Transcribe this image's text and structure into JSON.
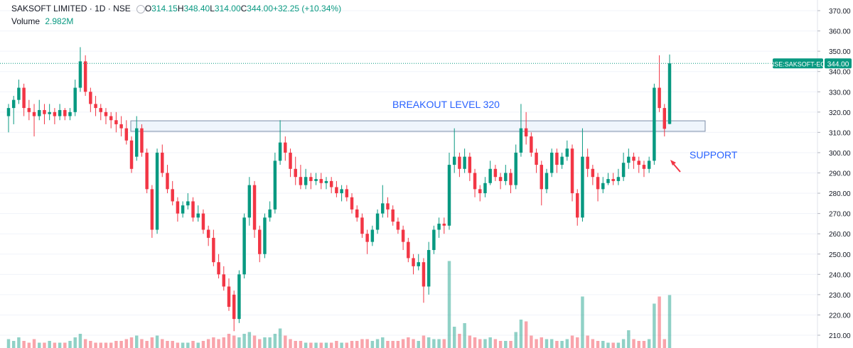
{
  "chart_data": {
    "type": "candlestick",
    "title": "SAKSOFT LIMITED · 1D · NSE",
    "legend": [
      {
        "prefix": "O",
        "text": "314.15"
      },
      {
        "prefix": "H",
        "text": "348.40"
      },
      {
        "prefix": "L",
        "text": "314.00"
      },
      {
        "prefix": "C",
        "text": "344.00"
      }
    ],
    "change": "+32.25 (+10.34%)",
    "volume_label": "Volume",
    "volume_value": "2.982M",
    "symbol_tag": "NSE:SAKSOFT-EQ",
    "last_price": {
      "value": 344,
      "label": "344.00"
    },
    "up_color": "#089981",
    "down_color": "#f23645",
    "ylim": [
      210,
      370
    ],
    "yticks": [
      {
        "value": 210,
        "label": "210.00"
      },
      {
        "value": 220,
        "label": "220.00"
      },
      {
        "value": 230,
        "label": "230.00"
      },
      {
        "value": 240,
        "label": "240.00"
      },
      {
        "value": 250,
        "label": "250.00"
      },
      {
        "value": 260,
        "label": "260.00"
      },
      {
        "value": 270,
        "label": "270.00"
      },
      {
        "value": 280,
        "label": "280.00"
      },
      {
        "value": 290,
        "label": "290.00"
      },
      {
        "value": 300,
        "label": "300.00"
      },
      {
        "value": 310,
        "label": "310.00"
      },
      {
        "value": 320,
        "label": "320.00"
      },
      {
        "value": 330,
        "label": "330.00"
      },
      {
        "value": 340,
        "label": "340.00"
      },
      {
        "value": 350,
        "label": "350.00"
      },
      {
        "value": 360,
        "label": "360.00"
      },
      {
        "value": 370,
        "label": "370.00"
      }
    ],
    "grid": true,
    "zone": [
      310.5,
      315.7
    ],
    "annotations": [
      {
        "text": "BREAKOUT LEVEL 320",
        "color": "#2962ff"
      },
      {
        "text": "SUPPORT",
        "color": "#2962ff"
      }
    ],
    "ohlc": [
      [
        318,
        324,
        310,
        322
      ],
      [
        322,
        328,
        314,
        326
      ],
      [
        326,
        336,
        324,
        332
      ],
      [
        332,
        334,
        318,
        322
      ],
      [
        322,
        326,
        316,
        320
      ],
      [
        320,
        324,
        308,
        318
      ],
      [
        318,
        326,
        316,
        321
      ],
      [
        321,
        324,
        314,
        319
      ],
      [
        319,
        324,
        316,
        320
      ],
      [
        320,
        322,
        314,
        318
      ],
      [
        318,
        324,
        316,
        321
      ],
      [
        321,
        322,
        316,
        318
      ],
      [
        318,
        322,
        316,
        320
      ],
      [
        320,
        336,
        318,
        332
      ],
      [
        332,
        352,
        330,
        345
      ],
      [
        345,
        348,
        328,
        330
      ],
      [
        330,
        332,
        320,
        324
      ],
      [
        324,
        328,
        318,
        322
      ],
      [
        322,
        324,
        316,
        320
      ],
      [
        320,
        322,
        314,
        318
      ],
      [
        318,
        320,
        312,
        316
      ],
      [
        316,
        320,
        310,
        314
      ],
      [
        314,
        318,
        308,
        312
      ],
      [
        312,
        316,
        304,
        306
      ],
      [
        306,
        308,
        290,
        292
      ],
      [
        298,
        318,
        296,
        312
      ],
      [
        312,
        314,
        298,
        300
      ],
      [
        300,
        302,
        280,
        282
      ],
      [
        282,
        284,
        258,
        262
      ],
      [
        262,
        302,
        260,
        300
      ],
      [
        300,
        304,
        288,
        290
      ],
      [
        290,
        294,
        280,
        282
      ],
      [
        282,
        286,
        274,
        276
      ],
      [
        276,
        278,
        266,
        270
      ],
      [
        270,
        276,
        268,
        274
      ],
      [
        274,
        280,
        272,
        276
      ],
      [
        276,
        278,
        266,
        268
      ],
      [
        268,
        274,
        266,
        270
      ],
      [
        270,
        272,
        260,
        262
      ],
      [
        262,
        264,
        254,
        258
      ],
      [
        258,
        262,
        244,
        246
      ],
      [
        246,
        250,
        238,
        240
      ],
      [
        240,
        244,
        232,
        234
      ],
      [
        234,
        238,
        222,
        224
      ],
      [
        230,
        232,
        212,
        218
      ],
      [
        218,
        242,
        216,
        240
      ],
      [
        240,
        270,
        238,
        268
      ],
      [
        268,
        288,
        264,
        284
      ],
      [
        284,
        286,
        258,
        262
      ],
      [
        262,
        264,
        246,
        250
      ],
      [
        250,
        270,
        248,
        268
      ],
      [
        268,
        276,
        266,
        272
      ],
      [
        272,
        300,
        270,
        296
      ],
      [
        296,
        316,
        294,
        305
      ],
      [
        305,
        308,
        296,
        300
      ],
      [
        300,
        302,
        288,
        292
      ],
      [
        292,
        298,
        284,
        288
      ],
      [
        288,
        294,
        282,
        284
      ],
      [
        284,
        292,
        282,
        288
      ],
      [
        288,
        290,
        282,
        286
      ],
      [
        286,
        290,
        284,
        287
      ],
      [
        287,
        290,
        282,
        285
      ],
      [
        285,
        288,
        282,
        286
      ],
      [
        286,
        288,
        280,
        283
      ],
      [
        283,
        286,
        278,
        280
      ],
      [
        280,
        284,
        276,
        282
      ],
      [
        282,
        284,
        276,
        278
      ],
      [
        278,
        280,
        270,
        272
      ],
      [
        272,
        274,
        266,
        268
      ],
      [
        268,
        270,
        258,
        260
      ],
      [
        260,
        262,
        250,
        256
      ],
      [
        256,
        264,
        254,
        262
      ],
      [
        262,
        272,
        260,
        270
      ],
      [
        270,
        284,
        268,
        275
      ],
      [
        275,
        278,
        268,
        272
      ],
      [
        272,
        274,
        264,
        266
      ],
      [
        266,
        268,
        260,
        262
      ],
      [
        262,
        264,
        252,
        256
      ],
      [
        256,
        258,
        246,
        248
      ],
      [
        248,
        250,
        240,
        244
      ],
      [
        244,
        250,
        242,
        246
      ],
      [
        246,
        248,
        226,
        234
      ],
      [
        234,
        256,
        230,
        252
      ],
      [
        252,
        264,
        250,
        262
      ],
      [
        262,
        268,
        258,
        265
      ],
      [
        265,
        268,
        260,
        264
      ],
      [
        264,
        300,
        262,
        294
      ],
      [
        294,
        312,
        290,
        298
      ],
      [
        298,
        300,
        288,
        292
      ],
      [
        292,
        302,
        290,
        298
      ],
      [
        298,
        300,
        286,
        290
      ],
      [
        290,
        292,
        278,
        282
      ],
      [
        282,
        284,
        276,
        280
      ],
      [
        280,
        288,
        278,
        285
      ],
      [
        285,
        296,
        284,
        292
      ],
      [
        292,
        294,
        286,
        288
      ],
      [
        288,
        290,
        282,
        286
      ],
      [
        286,
        294,
        284,
        290
      ],
      [
        290,
        292,
        280,
        284
      ],
      [
        284,
        304,
        282,
        300
      ],
      [
        300,
        324,
        298,
        312
      ],
      [
        312,
        320,
        304,
        308
      ],
      [
        308,
        310,
        298,
        300
      ],
      [
        300,
        302,
        290,
        294
      ],
      [
        294,
        296,
        274,
        282
      ],
      [
        282,
        292,
        280,
        290
      ],
      [
        290,
        302,
        288,
        300
      ],
      [
        300,
        302,
        290,
        294
      ],
      [
        294,
        300,
        292,
        298
      ],
      [
        298,
        306,
        296,
        302
      ],
      [
        302,
        304,
        276,
        280
      ],
      [
        280,
        282,
        264,
        268
      ],
      [
        268,
        312,
        266,
        298
      ],
      [
        298,
        302,
        288,
        292
      ],
      [
        292,
        294,
        284,
        288
      ],
      [
        288,
        290,
        276,
        282
      ],
      [
        282,
        288,
        280,
        285
      ],
      [
        285,
        290,
        284,
        287
      ],
      [
        287,
        290,
        284,
        286
      ],
      [
        286,
        292,
        284,
        288
      ],
      [
        288,
        300,
        286,
        295
      ],
      [
        295,
        302,
        292,
        298
      ],
      [
        298,
        300,
        292,
        296
      ],
      [
        296,
        298,
        290,
        294
      ],
      [
        294,
        296,
        288,
        292
      ],
      [
        292,
        298,
        290,
        296
      ],
      [
        296,
        334,
        294,
        332
      ],
      [
        332,
        348,
        320,
        322
      ],
      [
        322,
        324,
        308,
        311.75
      ],
      [
        314.15,
        348.4,
        314,
        344
      ]
    ],
    "volume": [
      0.5,
      0.4,
      0.6,
      0.4,
      0.3,
      0.5,
      0.3,
      0.3,
      0.4,
      0.3,
      0.3,
      0.3,
      0.4,
      0.6,
      0.8,
      0.5,
      0.4,
      0.3,
      0.3,
      0.3,
      0.3,
      0.4,
      0.4,
      0.5,
      0.6,
      0.7,
      0.5,
      0.4,
      0.6,
      0.7,
      0.5,
      0.4,
      0.4,
      0.3,
      0.3,
      0.3,
      0.4,
      0.3,
      0.4,
      0.5,
      0.6,
      0.5,
      0.6,
      0.8,
      0.7,
      0.6,
      0.8,
      0.9,
      0.7,
      0.5,
      0.6,
      0.6,
      0.8,
      1.1,
      0.7,
      0.5,
      0.4,
      0.4,
      0.3,
      0.3,
      0.3,
      0.3,
      0.3,
      0.3,
      0.4,
      0.3,
      0.3,
      0.4,
      0.4,
      0.5,
      0.5,
      0.4,
      0.5,
      0.6,
      0.4,
      0.4,
      0.4,
      0.5,
      0.6,
      0.5,
      0.4,
      0.7,
      0.6,
      0.5,
      0.5,
      0.5,
      4.9,
      1.2,
      0.8,
      1.4,
      0.7,
      0.6,
      0.5,
      0.5,
      0.6,
      0.5,
      0.4,
      0.4,
      0.4,
      0.9,
      1.6,
      1.5,
      0.7,
      0.5,
      0.6,
      0.5,
      0.5,
      0.4,
      0.4,
      0.5,
      0.7,
      0.6,
      2.9,
      0.7,
      0.5,
      0.4,
      0.4,
      0.3,
      0.3,
      0.3,
      0.5,
      1.0,
      0.5,
      0.4,
      0.4,
      0.5,
      2.5,
      2.9,
      0.5,
      2.982
    ]
  }
}
